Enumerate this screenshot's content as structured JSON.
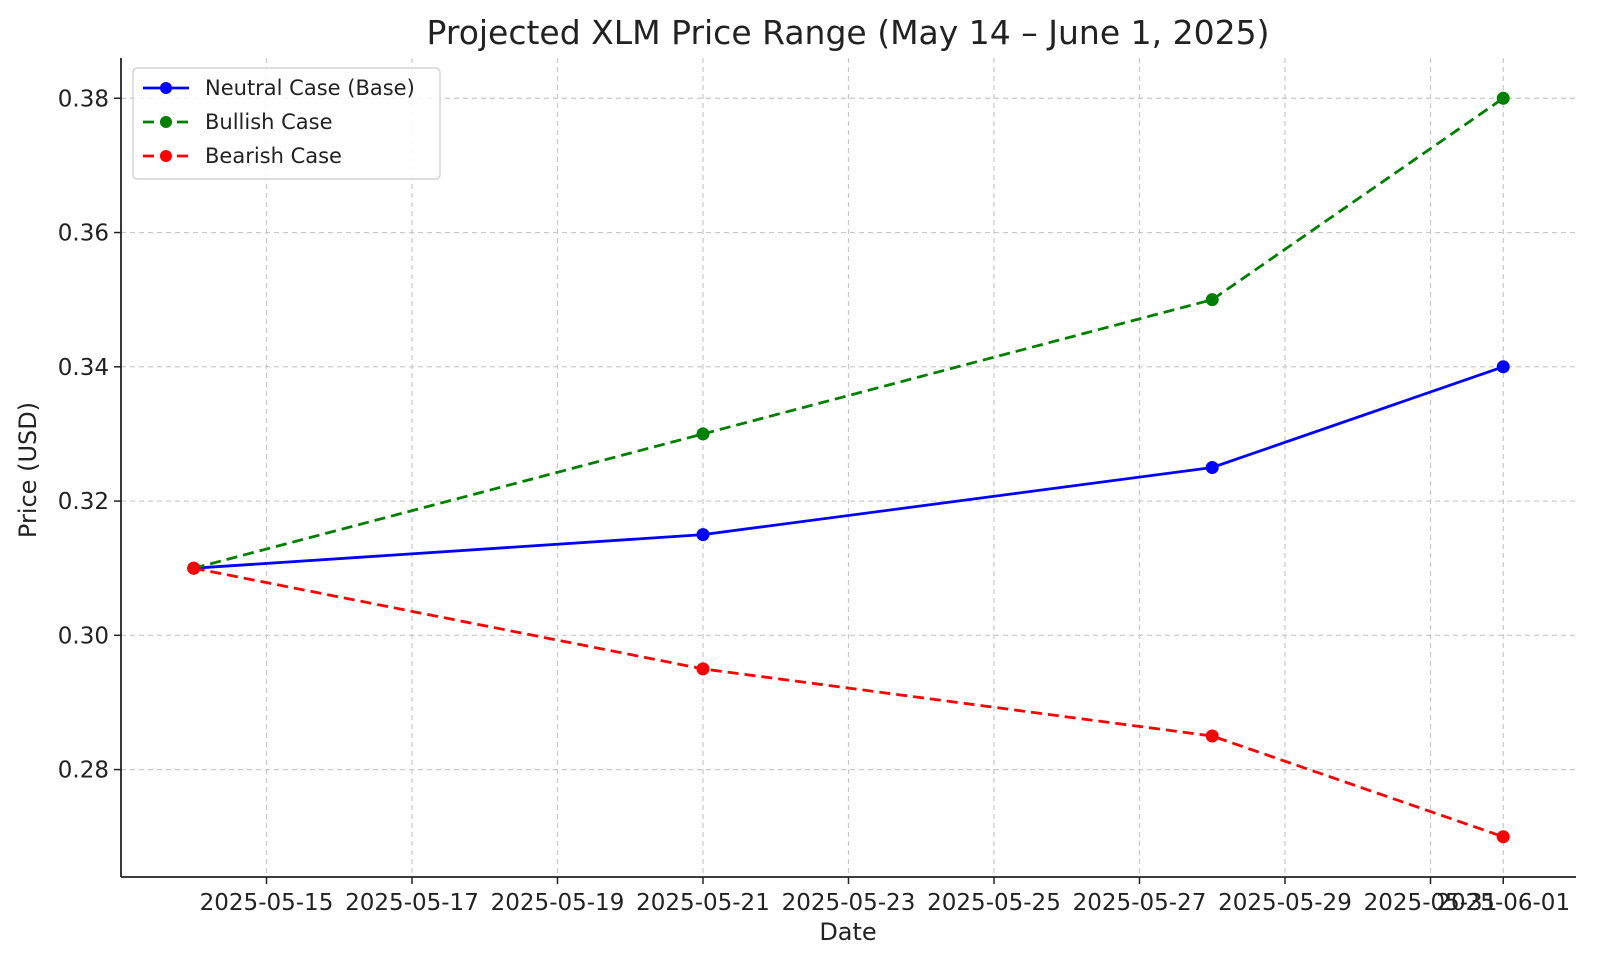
{
  "chart_data": {
    "type": "line",
    "title": "Projected XLM Price Range (May 14 – June 1, 2025)",
    "xlabel": "Date",
    "ylabel": "Price (USD)",
    "x_type": "date",
    "x": [
      "2025-05-14",
      "2025-05-21",
      "2025-05-28",
      "2025-06-01"
    ],
    "xlim": [
      "2025-05-13",
      "2025-06-02"
    ],
    "ylim": [
      0.264,
      0.386
    ],
    "x_ticks": [
      "2025-05-15",
      "2025-05-17",
      "2025-05-19",
      "2025-05-21",
      "2025-05-23",
      "2025-05-25",
      "2025-05-27",
      "2025-05-29",
      "2025-05-31",
      "2025-06-01"
    ],
    "y_ticks": [
      0.28,
      0.3,
      0.32,
      0.34,
      0.36,
      0.38
    ],
    "grid": true,
    "legend_position": "top-left",
    "series": [
      {
        "name": "Neutral Case (Base)",
        "values": [
          0.31,
          0.315,
          0.325,
          0.34
        ],
        "color": "#0000ff",
        "line_style": "solid"
      },
      {
        "name": "Bullish Case",
        "values": [
          0.31,
          0.33,
          0.35,
          0.38
        ],
        "color": "#008000",
        "line_style": "dashed"
      },
      {
        "name": "Bearish Case",
        "values": [
          0.31,
          0.295,
          0.285,
          0.27
        ],
        "color": "#ff0000",
        "line_style": "dashed"
      }
    ]
  }
}
